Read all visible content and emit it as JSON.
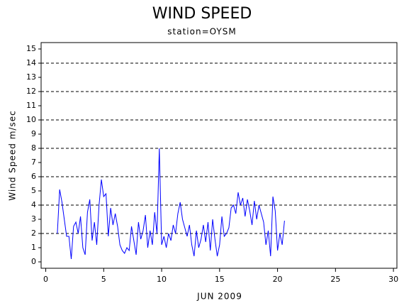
{
  "chart_data": {
    "type": "line",
    "title": "WIND SPEED",
    "subtitle": "station=OYSM",
    "x_label": "JUN 2009",
    "y_label": "Wind Speed m/sec",
    "xlim": [
      -0.4,
      30.3
    ],
    "ylim": [
      -0.45,
      15.45
    ],
    "xticks": [
      0,
      5,
      10,
      15,
      20,
      25,
      30
    ],
    "yticks": [
      0,
      1,
      2,
      3,
      4,
      5,
      6,
      7,
      8,
      9,
      10,
      11,
      12,
      13,
      14,
      15
    ],
    "grid_values": [
      2,
      4,
      6,
      8,
      10,
      12,
      14
    ],
    "series": [
      {
        "name": "Wind Speed",
        "color": "#0000ff",
        "x": [
          1.0,
          1.2,
          1.4,
          1.6,
          1.8,
          2.0,
          2.2,
          2.4,
          2.6,
          2.8,
          3.0,
          3.2,
          3.4,
          3.6,
          3.8,
          4.0,
          4.2,
          4.4,
          4.6,
          4.8,
          5.0,
          5.2,
          5.4,
          5.6,
          5.8,
          6.0,
          6.2,
          6.4,
          6.6,
          6.8,
          7.0,
          7.2,
          7.4,
          7.6,
          7.8,
          8.0,
          8.2,
          8.4,
          8.6,
          8.8,
          9.0,
          9.2,
          9.4,
          9.6,
          9.8,
          10.0,
          10.2,
          10.4,
          10.6,
          10.8,
          11.0,
          11.2,
          11.4,
          11.6,
          11.8,
          12.0,
          12.2,
          12.4,
          12.6,
          12.8,
          13.0,
          13.2,
          13.4,
          13.6,
          13.8,
          14.0,
          14.2,
          14.4,
          14.6,
          14.8,
          15.0,
          15.2,
          15.4,
          15.6,
          15.8,
          16.0,
          16.2,
          16.4,
          16.6,
          16.8,
          17.0,
          17.2,
          17.4,
          17.6,
          17.8,
          18.0,
          18.2,
          18.4,
          18.6,
          18.8,
          19.0,
          19.2,
          19.4,
          19.6,
          19.8,
          20.0,
          20.2,
          20.4,
          20.6
        ],
        "values": [
          2.0,
          5.1,
          4.2,
          3.0,
          1.8,
          1.8,
          0.2,
          2.5,
          2.8,
          2.0,
          3.2,
          1.0,
          0.5,
          3.5,
          4.4,
          1.5,
          2.8,
          1.2,
          4.0,
          5.8,
          4.6,
          4.8,
          1.8,
          3.8,
          2.6,
          3.4,
          2.5,
          1.2,
          0.8,
          0.6,
          1.0,
          0.8,
          2.5,
          1.5,
          0.5,
          2.8,
          1.6,
          2.2,
          3.3,
          1.0,
          2.2,
          1.2,
          3.5,
          2.0,
          8.0,
          1.2,
          1.8,
          1.0,
          2.0,
          1.5,
          2.6,
          2.0,
          3.4,
          4.2,
          3.0,
          2.4,
          1.8,
          2.6,
          1.2,
          0.4,
          2.2,
          1.0,
          1.6,
          2.6,
          1.4,
          2.8,
          0.8,
          3.0,
          1.6,
          0.4,
          1.2,
          3.2,
          1.8,
          2.0,
          2.4,
          3.8,
          4.0,
          3.4,
          4.9,
          4.0,
          4.5,
          3.2,
          4.4,
          3.6,
          2.6,
          4.3,
          3.0,
          4.0,
          3.4,
          2.8,
          1.2,
          2.2,
          0.4,
          4.6,
          3.6,
          0.8,
          2.0,
          1.2,
          2.9
        ]
      }
    ]
  }
}
